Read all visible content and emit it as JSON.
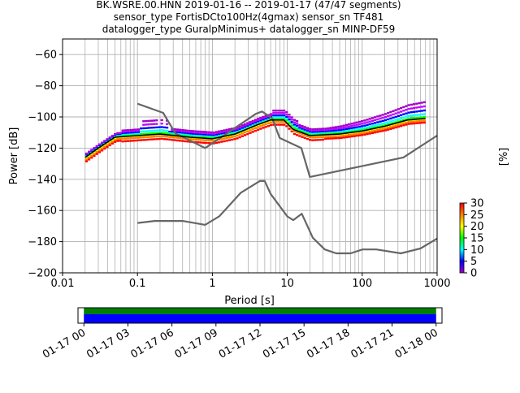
{
  "chart_data": [
    {
      "type": "heatmap",
      "title_lines": [
        "BK.WSRE.00.HNN   2019-01-16 -- 2019-01-17  (47/47 segments)",
        "sensor_type FortisDCto100Hz(4gmax) sensor_sn TF481",
        "datalogger_type GuralpMinimus+ datalogger_sn MINP-DF59"
      ],
      "xlabel": "Period [s]",
      "ylabel": "Power [dB]",
      "xscale": "log",
      "xlim": [
        0.01,
        1000
      ],
      "ylim": [
        -200,
        -50
      ],
      "x_ticks": [
        "0.01",
        "0.1",
        "1",
        "10",
        "100",
        "1000"
      ],
      "y_ticks": [
        "−200",
        "−180",
        "−160",
        "−140",
        "−120",
        "−100",
        "−80",
        "−60"
      ],
      "grid": true,
      "colorbar": {
        "label": "[%]",
        "range": [
          0,
          30
        ],
        "ticks": [
          "0",
          "5",
          "10",
          "15",
          "20",
          "25",
          "30"
        ],
        "colormap": [
          "#a000c8",
          "#0000ff",
          "#00ffff",
          "#00ff00",
          "#ffff00",
          "#ff8000",
          "#ff0000",
          "#000000"
        ]
      },
      "series": [
        {
          "role": "noise-model-high",
          "color": "#666666",
          "x": [
            0.1,
            0.22,
            0.32,
            0.8,
            3.8,
            4.6,
            6.3,
            7.9,
            15.4,
            20,
            354.8,
            1000
          ],
          "y": [
            -91.5,
            -97.4,
            -110.5,
            -120,
            -98.0,
            -96.5,
            -101.0,
            -113.5,
            -120.0,
            -138.5,
            -126.0,
            -112
          ]
        },
        {
          "role": "noise-model-low",
          "color": "#666666",
          "x": [
            0.1,
            0.17,
            0.4,
            0.8,
            1.24,
            2.4,
            4.3,
            5.0,
            6.0,
            10.0,
            12.0,
            15.6,
            21.9,
            31.6,
            45.0,
            70.0,
            101.0,
            154.0,
            328.0,
            600.0,
            1000
          ],
          "y": [
            -168.0,
            -166.7,
            -166.7,
            -169.2,
            -163.7,
            -148.6,
            -141.1,
            -141.1,
            -149.4,
            -163.8,
            -166.2,
            -162.1,
            -177.5,
            -185.0,
            -187.5,
            -187.5,
            -185.0,
            -185.0,
            -187.5,
            -184.4,
            -178
          ]
        },
        {
          "role": "mode",
          "color": "#000000",
          "x": [
            0.02,
            0.03,
            0.05,
            0.1,
            0.2,
            0.5,
            1.0,
            2.0,
            4.0,
            6.0,
            9.0,
            12.0,
            20.0,
            50.0,
            100.0,
            200.0,
            400.0,
            700.0
          ],
          "y": [
            -126,
            -120,
            -113,
            -112,
            -111,
            -113,
            -114,
            -111,
            -105,
            -102,
            -102,
            -108,
            -112,
            -111,
            -109,
            -106,
            -102,
            -101
          ]
        }
      ]
    },
    {
      "type": "bar",
      "x_ticks": [
        "01-17 00",
        "01-17 03",
        "01-17 06",
        "01-17 09",
        "01-17 12",
        "01-17 15",
        "01-17 18",
        "01-17 21",
        "01-18 00"
      ],
      "xlim_hours": [
        -0.4,
        24.4
      ],
      "coverage": {
        "start_hour": 0,
        "end_hour": 24
      },
      "colors": {
        "data": "#0000ff",
        "gaps_ok": "#008000"
      }
    }
  ]
}
